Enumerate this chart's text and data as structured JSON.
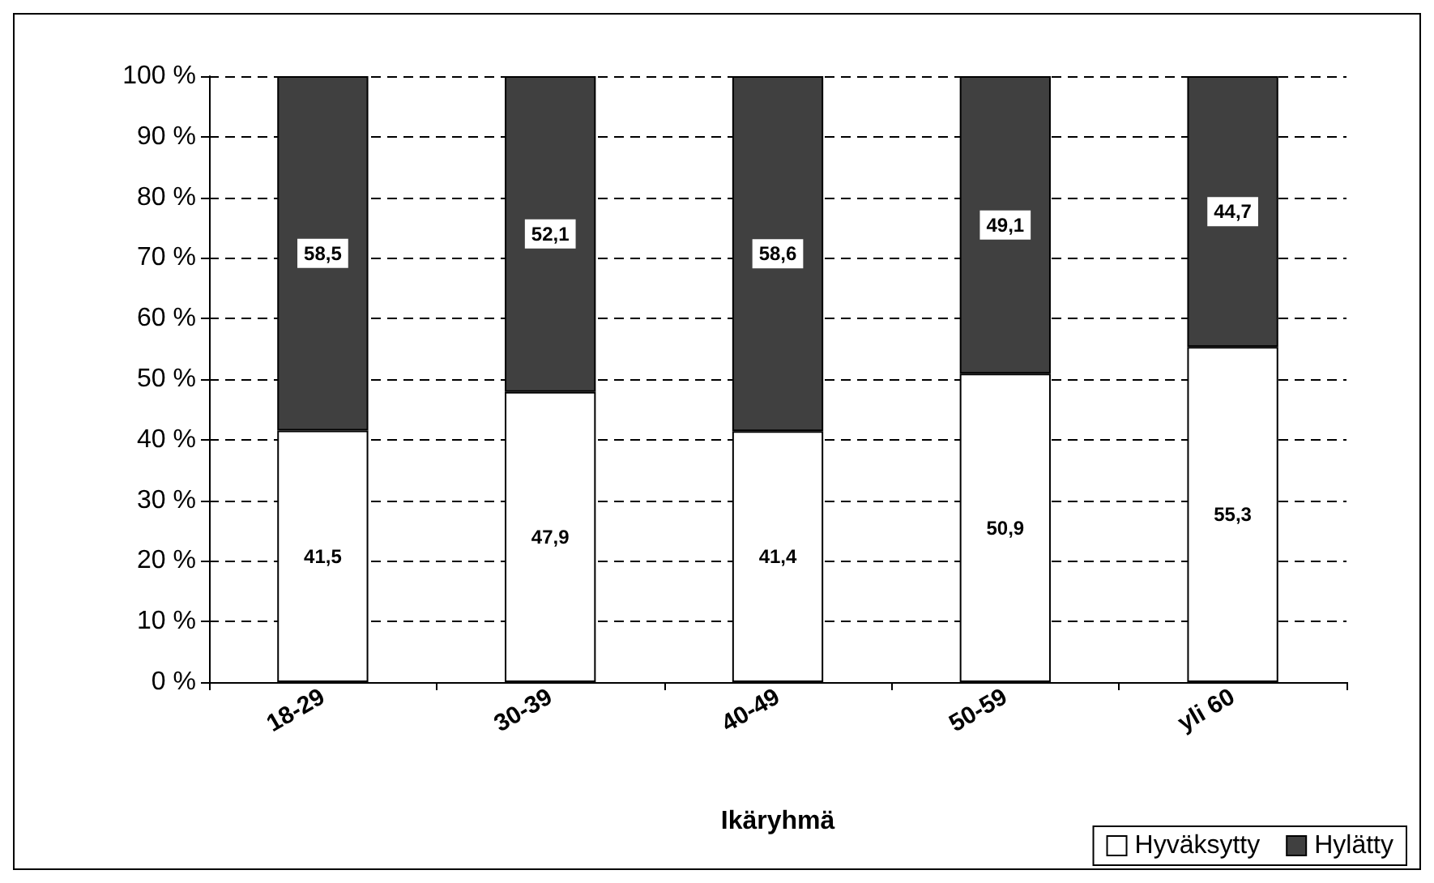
{
  "chart_data": {
    "type": "bar",
    "stacked": true,
    "xlabel": "Ikäryhmä",
    "categories": [
      "18-29",
      "30-39",
      "40-49",
      "50-59",
      "yli 60"
    ],
    "series": [
      {
        "name": "Hyväksytty",
        "color": "#ffffff",
        "values": [
          41.5,
          47.9,
          41.4,
          50.9,
          55.3
        ],
        "value_labels": [
          "41,5",
          "47,9",
          "41,4",
          "50,9",
          "55,3"
        ]
      },
      {
        "name": "Hylätty",
        "color": "#404040",
        "values": [
          58.5,
          52.1,
          58.6,
          49.1,
          44.7
        ],
        "value_labels": [
          "58,5",
          "52,1",
          "58,6",
          "49,1",
          "44,7"
        ]
      }
    ],
    "ylim": [
      0,
      100
    ],
    "yticks": [
      {
        "value": 0,
        "label": "0 %"
      },
      {
        "value": 10,
        "label": "10 %"
      },
      {
        "value": 20,
        "label": "20 %"
      },
      {
        "value": 30,
        "label": "30 %"
      },
      {
        "value": 40,
        "label": "40 %"
      },
      {
        "value": 50,
        "label": "50 %"
      },
      {
        "value": 60,
        "label": "60 %"
      },
      {
        "value": 70,
        "label": "70 %"
      },
      {
        "value": 80,
        "label": "80 %"
      },
      {
        "value": 90,
        "label": "90 %"
      },
      {
        "value": 100,
        "label": "100 %"
      }
    ],
    "grid": "y",
    "legend": "bottom right"
  }
}
